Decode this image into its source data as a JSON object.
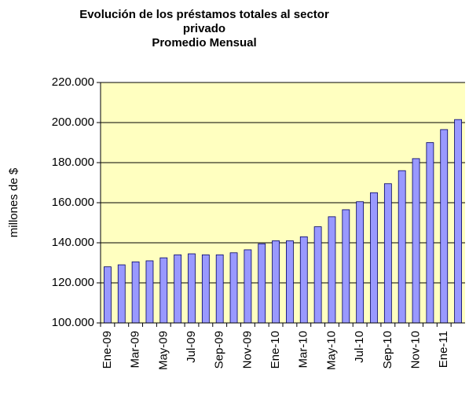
{
  "chart_data": {
    "type": "bar",
    "title": "Evolución de los préstamos totales al sector privado",
    "subtitle": "Promedio Mensual",
    "y_label": "millones de $",
    "categories": [
      "Ene-09",
      null,
      "Mar-09",
      null,
      "May-09",
      null,
      "Jul-09",
      null,
      "Sep-09",
      null,
      "Nov-09",
      null,
      "Ene-10",
      null,
      "Mar-10",
      null,
      "May-10",
      null,
      "Jul-10",
      null,
      "Sep-10",
      null,
      "Nov-10",
      null,
      "Ene-11",
      null
    ],
    "values": [
      128000,
      129000,
      130500,
      131000,
      132500,
      134000,
      134500,
      134000,
      134000,
      135000,
      136500,
      139500,
      141000,
      141000,
      143000,
      148000,
      153000,
      156500,
      160500,
      165000,
      169500,
      176000,
      182000,
      190000,
      196500,
      201500
    ],
    "color": "#9999ff",
    "ylim": [
      100000,
      220000
    ],
    "yticks": [
      {
        "value": 100000,
        "label": "100.000"
      },
      {
        "value": 120000,
        "label": "120.000"
      },
      {
        "value": 140000,
        "label": "140.000"
      },
      {
        "value": 160000,
        "label": "160.000"
      },
      {
        "value": 180000,
        "label": "180.000"
      },
      {
        "value": 200000,
        "label": "200.000"
      },
      {
        "value": 220000,
        "label": "220.000"
      }
    ],
    "grid": true
  }
}
